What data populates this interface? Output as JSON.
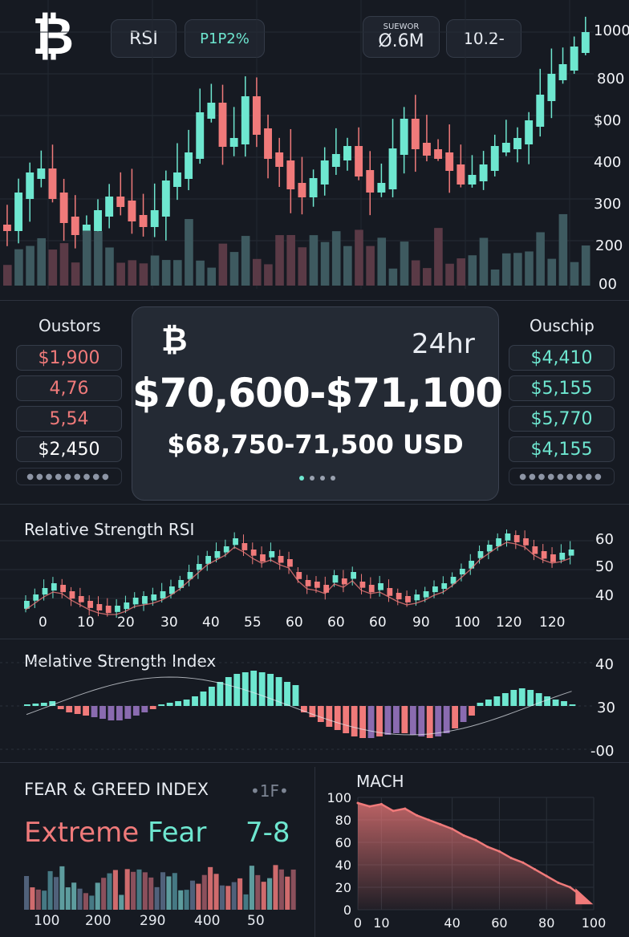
{
  "colors": {
    "bg": "#161a22",
    "green": "#6ee7d0",
    "red": "#f07a7a",
    "purple": "#8a6bb0",
    "white": "#f2f4f8"
  },
  "header": {
    "logo_glyph": "₿",
    "rsi_button": "RSI",
    "pct_button": "P1P2%",
    "volume_label": "SUEWOR",
    "volume_value": "O̸.6M",
    "price_box": "10.2-"
  },
  "main_chart": {
    "y_labels": [
      "1000",
      "800",
      "$00",
      "400",
      "300",
      "200",
      "00"
    ]
  },
  "left_list": {
    "title": "Oustors",
    "items": [
      "$1,900",
      "4,76",
      "5,54",
      "$2,450"
    ],
    "dots": "●●●●●●●●●"
  },
  "right_list": {
    "title": "Ouschip",
    "items": [
      "$4,410",
      "$5,155",
      "$5,770",
      "$4,155"
    ],
    "dots": "●●●●●●●●●"
  },
  "center_card": {
    "logo_glyph": "₿",
    "period": "24hr",
    "range_main": "$70,600-$71,100",
    "range_sub": "$68,750-71,500 USD"
  },
  "rsi_panel": {
    "title": "Relative Strength  RSI",
    "y_labels": [
      "60",
      "50",
      "40"
    ],
    "x_labels": [
      "0",
      "10",
      "20",
      "30",
      "40",
      "55",
      "60",
      "60",
      "60",
      "90",
      "100",
      "120",
      "120"
    ]
  },
  "index_panel": {
    "title": "Melative Strength Index",
    "y_labels": [
      "40",
      "30",
      "-00"
    ]
  },
  "fear_greed": {
    "title": "FEAR & GREED INDEX",
    "corner_tag": "•1F•",
    "label_word1": "Extreme",
    "label_word2": "Fear",
    "value": "7-8",
    "x_labels": [
      "100",
      "200",
      "290",
      "400",
      "50"
    ]
  },
  "chart_data": [
    {
      "type": "line",
      "title": "MACH",
      "xlabel": "",
      "ylabel": "",
      "x": [
        0,
        5,
        10,
        15,
        20,
        25,
        30,
        35,
        40,
        45,
        50,
        55,
        60,
        65,
        70,
        75,
        80,
        85,
        90,
        95
      ],
      "series": [
        {
          "values": [
            95,
            92,
            94,
            88,
            90,
            84,
            80,
            76,
            72,
            66,
            62,
            56,
            52,
            46,
            42,
            36,
            30,
            24,
            20,
            12
          ]
        }
      ],
      "xlim": [
        0,
        100
      ],
      "ylim": [
        0,
        100
      ],
      "x_ticks": [
        "0",
        "10",
        "40",
        "60",
        "80",
        "100"
      ],
      "y_ticks": [
        "100",
        "80",
        "60",
        "40",
        "20",
        "0"
      ]
    }
  ]
}
